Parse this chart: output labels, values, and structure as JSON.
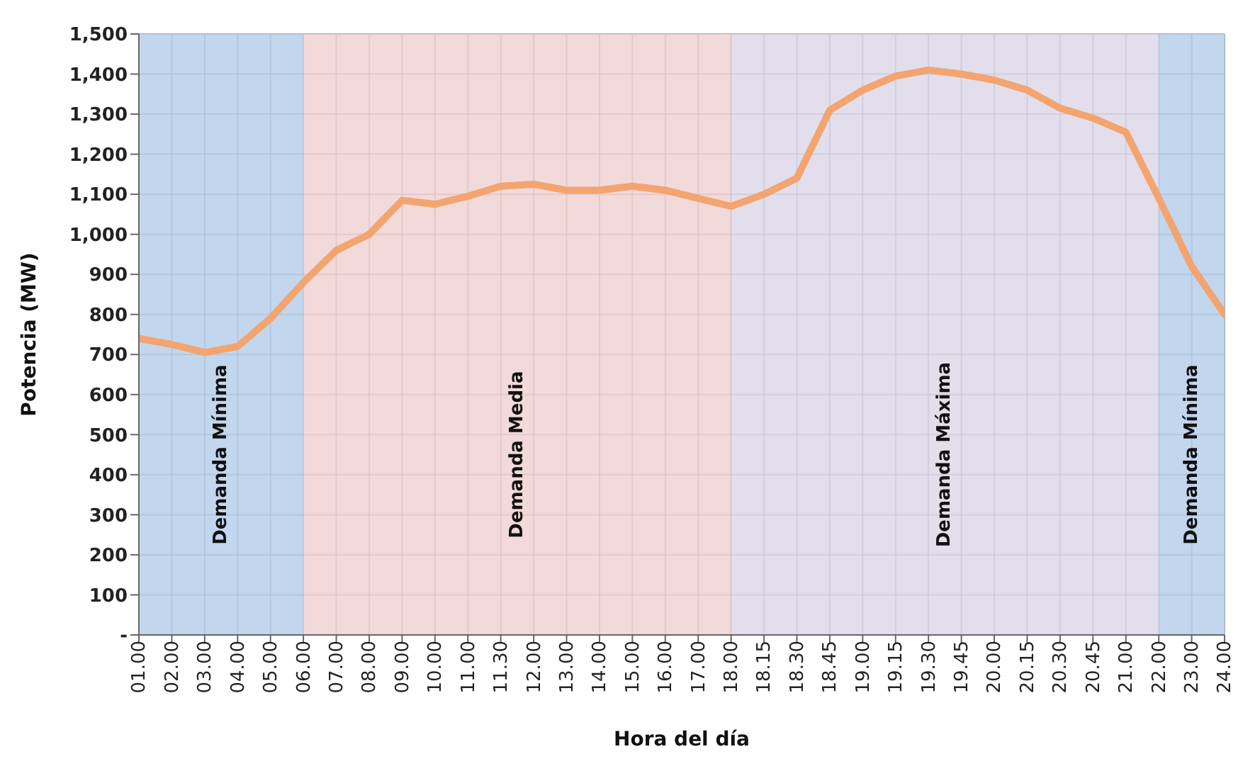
{
  "chart_data": {
    "type": "line",
    "xlabel": "Hora del día",
    "ylabel": "Potencia (MW)",
    "categories": [
      "01.00",
      "02.00",
      "03.00",
      "04.00",
      "05.00",
      "06.00",
      "07.00",
      "08.00",
      "09.00",
      "10.00",
      "11.00",
      "11.30",
      "12.00",
      "13.00",
      "14.00",
      "15.00",
      "16.00",
      "17.00",
      "18.00",
      "18.15",
      "18.30",
      "18.45",
      "19.00",
      "19.15",
      "19.30",
      "19.45",
      "20.00",
      "20.15",
      "20.30",
      "20.45",
      "21.00",
      "22.00",
      "23.00",
      "24.00"
    ],
    "series": [
      {
        "color": "#f3a46f",
        "values": [
          740,
          725,
          705,
          720,
          790,
          880,
          960,
          1000,
          1085,
          1075,
          1095,
          1120,
          1125,
          1110,
          1110,
          1120,
          1110,
          1090,
          1070,
          1100,
          1140,
          1310,
          1360,
          1395,
          1410,
          1400,
          1385,
          1360,
          1315,
          1290,
          1255,
          1090,
          920,
          800
        ]
      }
    ],
    "ylim": [
      0,
      1500
    ],
    "yticks": [
      {
        "value": 0,
        "label": "-"
      },
      100,
      200,
      300,
      400,
      500,
      600,
      700,
      800,
      900,
      {
        "value": 1000,
        "label": "1,000"
      },
      {
        "value": 1100,
        "label": "1,100"
      },
      {
        "value": 1200,
        "label": "1,200"
      },
      {
        "value": 1300,
        "label": "1,300"
      },
      {
        "value": 1400,
        "label": "1,400"
      },
      {
        "value": 1500,
        "label": "1,500"
      }
    ],
    "grid": true,
    "marker": "none",
    "line_style": "solid",
    "bands": [
      {
        "axis": "x",
        "from": "01.00",
        "to": "06.00",
        "label": "Demanda Mínima",
        "color": "#b3cde9"
      },
      {
        "axis": "x",
        "from": "06.00",
        "to": "18.00",
        "label": "Demanda Media",
        "color": "#efd0d1"
      },
      {
        "axis": "x",
        "from": "18.00",
        "to": "22.00",
        "label": "Demanda Máxima",
        "color": "#dcd6e6"
      },
      {
        "axis": "x",
        "from": "22.00",
        "to": "24.00",
        "label": "Demanda Mínima",
        "color": "#b3cde9"
      }
    ]
  }
}
